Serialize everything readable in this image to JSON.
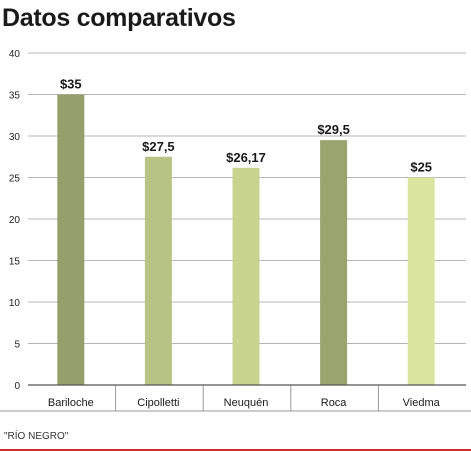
{
  "title": "Datos comparativos",
  "source": "\"RÍO NEGRO\"",
  "chart_data": {
    "type": "bar",
    "title": "Datos comparativos",
    "categories": [
      "Bariloche",
      "Cipolletti",
      "Neuquén",
      "Roca",
      "Viedma"
    ],
    "values": [
      35,
      27.5,
      26.17,
      29.5,
      25
    ],
    "data_labels": [
      "$35",
      "$27,5",
      "$26,17",
      "$29,5",
      "$25"
    ],
    "bar_colors": [
      "#949f6c",
      "#b8c486",
      "#c8d38e",
      "#9aa46f",
      "#dbe49f"
    ],
    "xlabel": "",
    "ylabel": "",
    "ylim": [
      0,
      40
    ],
    "yticks": [
      0,
      5,
      10,
      15,
      20,
      25,
      30,
      35,
      40
    ],
    "grid": true,
    "legend": "none"
  }
}
